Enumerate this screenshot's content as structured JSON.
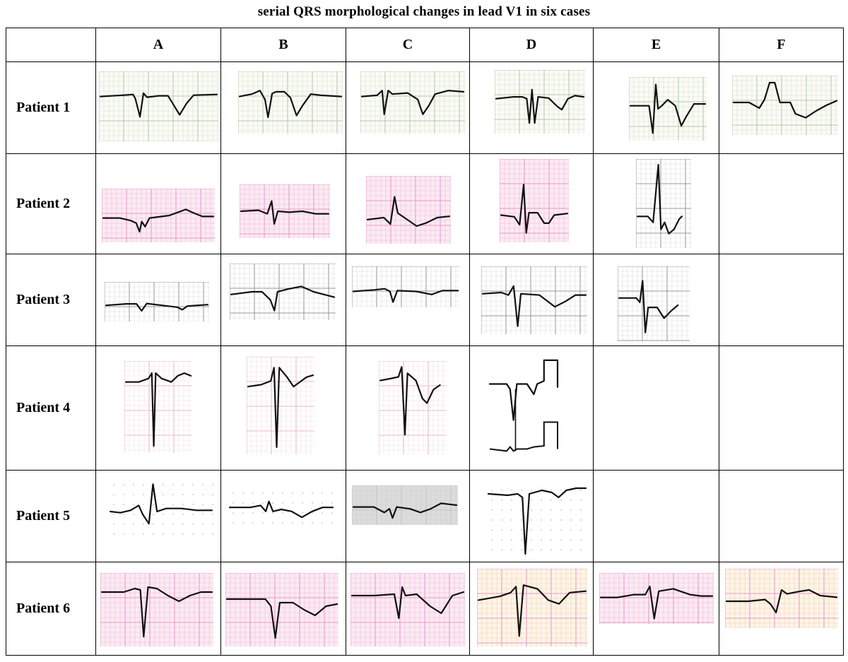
{
  "title": "serial QRS morphological  changes in lead V1 in six cases",
  "columns": [
    "A",
    "B",
    "C",
    "D",
    "E",
    "F"
  ],
  "rows": [
    {
      "label": "Patient  1",
      "cells": [
        "A",
        "B",
        "C",
        "D",
        "E",
        "F"
      ]
    },
    {
      "label": "Patient  2",
      "cells": [
        "A",
        "B",
        "C",
        "D",
        "E"
      ]
    },
    {
      "label": "Patient  3",
      "cells": [
        "A",
        "B",
        "C",
        "D",
        "E"
      ]
    },
    {
      "label": "Patient  4",
      "cells": [
        "A",
        "B",
        "C",
        "D"
      ]
    },
    {
      "label": "Patient  5",
      "cells": [
        "A",
        "B",
        "C",
        "D"
      ]
    },
    {
      "label": "Patient  6",
      "cells": [
        "A",
        "B",
        "C",
        "D",
        "E",
        "F"
      ]
    }
  ],
  "colors": {
    "pink_grid": "#e79ac7",
    "gray_grid": "#9a9a9a",
    "mixed_grid": "#b7c9a8",
    "trace": "#111111"
  }
}
